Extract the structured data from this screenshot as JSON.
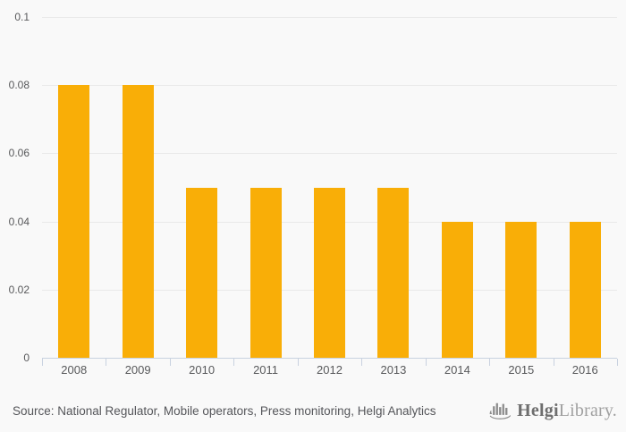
{
  "chart_data": {
    "type": "bar",
    "categories": [
      "2008",
      "2009",
      "2010",
      "2011",
      "2012",
      "2013",
      "2014",
      "2015",
      "2016"
    ],
    "values": [
      0.08,
      0.08,
      0.05,
      0.05,
      0.05,
      0.05,
      0.04,
      0.04,
      0.04
    ],
    "title": "",
    "xlabel": "",
    "ylabel": "",
    "ylim": [
      0,
      0.1
    ],
    "yticks": [
      0.1,
      0.08,
      0.06,
      0.04,
      0.02,
      0
    ],
    "ytick_labels": [
      "0.1",
      "0.08",
      "0.06",
      "0.04",
      "0.02",
      "0"
    ],
    "grid": true,
    "legend_position": "none",
    "bar_color": "#F9AE07"
  },
  "footer": {
    "source_text": "Source: National Regulator, Mobile operators, Press monitoring, Helgi Analytics",
    "logo": {
      "brand_primary": "Helgi",
      "brand_secondary": "Library.",
      "icon": "helgi-ship-bars-icon"
    }
  },
  "colors": {
    "background": "#f9f9f9",
    "bar": "#F9AE07",
    "gridline": "#e9e9e9",
    "axis": "#c9d2e0",
    "tick_label": "#58595b",
    "source_text": "#55565a",
    "logo_primary": "#6e6e6e",
    "logo_secondary": "#a0a0a0",
    "logo_icon": "#8b8b8b"
  }
}
